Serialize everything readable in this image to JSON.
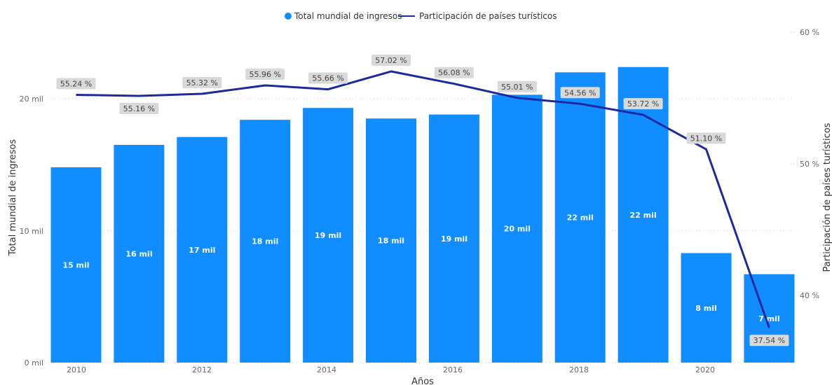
{
  "legend": {
    "bars": "Total mundial de ingresos",
    "line": "Participación de países turísticos"
  },
  "colors": {
    "bar": "#118DFF",
    "line": "#1B2A9E",
    "label_bg": "#d9d9d9",
    "grid": "#d0d0d0"
  },
  "axes": {
    "y_left_title": "Total mundial de ingresos",
    "y_right_title": "Participación de países turísticos",
    "x_title": "Años",
    "y_left_ticks": [
      "0 mil",
      "10 mil",
      "20 mil"
    ],
    "y_right_ticks": [
      "40 %",
      "50 %",
      "60 %"
    ],
    "x_ticks": [
      "2010",
      "2012",
      "2014",
      "2016",
      "2018",
      "2020"
    ]
  },
  "chart_data": {
    "type": "bar",
    "categories": [
      "2010",
      "2011",
      "2012",
      "2013",
      "2014",
      "2015",
      "2016",
      "2017",
      "2018",
      "2019",
      "2020",
      "2021"
    ],
    "series": [
      {
        "name": "Total mundial de ingresos",
        "type": "bar",
        "axis": "left",
        "values": [
          14.8,
          16.5,
          17.1,
          18.4,
          19.3,
          18.5,
          18.8,
          20.3,
          22.0,
          22.4,
          8.3,
          6.7
        ],
        "labels": [
          "15 mil",
          "16 mil",
          "17 mil",
          "18 mil",
          "19 mil",
          "18 mil",
          "19 mil",
          "20 mil",
          "22 mil",
          "22 mil",
          "8 mil",
          "7 mil"
        ]
      },
      {
        "name": "Participación de países turísticos",
        "type": "line",
        "axis": "right",
        "values": [
          55.24,
          55.16,
          55.32,
          55.96,
          55.66,
          57.02,
          56.08,
          55.01,
          54.56,
          53.72,
          51.1,
          37.54
        ],
        "labels": [
          "55.24 %",
          "55.16 %",
          "55.32 %",
          "55.96 %",
          "55.66 %",
          "57.02 %",
          "56.08 %",
          "55.01 %",
          "54.56 %",
          "53.72 %",
          "51.10 %",
          "37.54 %"
        ]
      }
    ],
    "y_left_range": [
      0,
      25
    ],
    "y_right_range": [
      35,
      62
    ],
    "grid": true,
    "legend_position": "top-center"
  }
}
